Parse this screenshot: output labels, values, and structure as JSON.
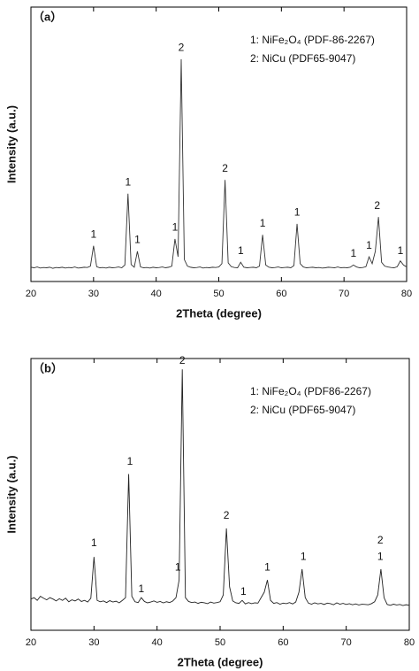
{
  "chart_data": [
    {
      "type": "line",
      "title": "（a）",
      "xlabel": "2Theta (degree)",
      "ylabel": "Intensity (a.u.)",
      "legend_text": [
        "1: NiFe₂O₄ (PDF-86-2267)",
        "2: NiCu (PDF65-9047)"
      ],
      "xlim": [
        20,
        80
      ],
      "xticks": [
        20,
        30,
        40,
        50,
        60,
        70,
        80
      ],
      "ylim": [
        0,
        100
      ],
      "series": [
        {
          "color": "#333333",
          "x": [
            20,
            20.5,
            21,
            21.5,
            22,
            22.5,
            23,
            23.5,
            24,
            24.5,
            25,
            25.5,
            26,
            26.5,
            27,
            27.5,
            28,
            28.5,
            29,
            29.5,
            30,
            30.5,
            31,
            31.5,
            32,
            32.5,
            33,
            33.5,
            34,
            34.5,
            35,
            35.5,
            36,
            36.5,
            37,
            37.5,
            38,
            38.5,
            39,
            39.5,
            40,
            40.5,
            41,
            41.5,
            42,
            42.5,
            43,
            43.5,
            44,
            44.5,
            45,
            45.5,
            46,
            46.5,
            47,
            47.5,
            48,
            48.5,
            49,
            49.5,
            50,
            50.5,
            51,
            51.5,
            52,
            52.5,
            53,
            53.5,
            54,
            54.5,
            55,
            55.5,
            56,
            56.5,
            57,
            57.5,
            58,
            58.5,
            59,
            59.5,
            60,
            60.5,
            61,
            61.5,
            62,
            62.5,
            63,
            63.5,
            64,
            64.5,
            65,
            65.5,
            66,
            66.5,
            67,
            67.5,
            68,
            68.5,
            69,
            69.5,
            70,
            70.5,
            71,
            71.5,
            72,
            72.5,
            73,
            73.5,
            74,
            74.5,
            75,
            75.5,
            76,
            76.5,
            77,
            77.5,
            78,
            78.5,
            79,
            79.5,
            80
          ],
          "values": [
            5.2,
            5.0,
            5.3,
            4.9,
            5.1,
            5.0,
            5.2,
            4.8,
            5.1,
            5.0,
            5.2,
            4.9,
            5.1,
            5.0,
            5.3,
            4.9,
            5.0,
            5.2,
            5.1,
            5.6,
            13,
            5.4,
            5.0,
            5.1,
            4.9,
            5.2,
            5.0,
            5.1,
            5.3,
            5.0,
            6.0,
            32,
            6.2,
            5.2,
            11,
            5.3,
            5.0,
            5.1,
            4.9,
            5.2,
            5.0,
            5.1,
            5.3,
            5.0,
            5.2,
            5.6,
            15.5,
            9,
            81,
            8,
            5.6,
            5.2,
            5.0,
            5.1,
            5.3,
            4.9,
            5.1,
            5.0,
            5.2,
            5.1,
            5.3,
            6.5,
            37,
            6.8,
            5.4,
            5.1,
            5.0,
            7,
            5.2,
            5.0,
            5.1,
            5.2,
            5.0,
            5.6,
            17,
            6,
            5.2,
            5.0,
            5.1,
            5.3,
            5.0,
            5.1,
            5.2,
            5.0,
            5.8,
            21,
            6.5,
            5.3,
            5.0,
            5.1,
            5.2,
            5.0,
            5.1,
            4.9,
            5.0,
            5.2,
            5.1,
            5.0,
            5.3,
            5.0,
            5.1,
            5.0,
            5.2,
            6,
            5.3,
            5.0,
            5.1,
            5.4,
            9,
            6.5,
            11,
            23.5,
            7,
            5.6,
            5.3,
            5.1,
            5.0,
            5.4,
            7.5,
            6.0,
            5.3
          ]
        }
      ],
      "annotations": [
        {
          "text": "1",
          "x": 30,
          "y": 17
        },
        {
          "text": "1",
          "x": 35.5,
          "y": 36
        },
        {
          "text": "1",
          "x": 37,
          "y": 15
        },
        {
          "text": "1",
          "x": 43,
          "y": 19.5
        },
        {
          "text": "2",
          "x": 44,
          "y": 85
        },
        {
          "text": "2",
          "x": 51,
          "y": 41
        },
        {
          "text": "1",
          "x": 53.5,
          "y": 11
        },
        {
          "text": "1",
          "x": 57,
          "y": 21
        },
        {
          "text": "1",
          "x": 62.5,
          "y": 25
        },
        {
          "text": "1",
          "x": 71.5,
          "y": 10
        },
        {
          "text": "1",
          "x": 74,
          "y": 13
        },
        {
          "text": "2",
          "x": 75.3,
          "y": 27.5
        },
        {
          "text": "1",
          "x": 79,
          "y": 11
        }
      ]
    },
    {
      "type": "line",
      "title": "（b）",
      "xlabel": "2Theta (degree)",
      "ylabel": "Intensity (a.u.)",
      "legend_text": [
        "1: NiFe₂O₄ (PDF86-2267)",
        "2: NiCu (PDF65-9047)"
      ],
      "xlim": [
        20,
        80
      ],
      "xticks": [
        20,
        30,
        40,
        50,
        60,
        70,
        80
      ],
      "ylim": [
        0,
        100
      ],
      "series": [
        {
          "color": "#222222",
          "x": [
            20,
            20.5,
            21,
            21.5,
            22,
            22.5,
            23,
            23.5,
            24,
            24.5,
            25,
            25.5,
            26,
            26.5,
            27,
            27.5,
            28,
            28.5,
            29,
            29.5,
            30,
            30.5,
            31,
            31.5,
            32,
            32.5,
            33,
            33.5,
            34,
            34.5,
            35,
            35.5,
            36,
            36.5,
            37,
            37.5,
            38,
            38.5,
            39,
            39.5,
            40,
            40.5,
            41,
            41.5,
            42,
            42.5,
            43,
            43.5,
            44,
            44.5,
            45,
            45.5,
            46,
            46.5,
            47,
            47.5,
            48,
            48.5,
            49,
            49.5,
            50,
            50.5,
            51,
            51.5,
            52,
            52.5,
            53,
            53.5,
            54,
            54.5,
            55,
            55.5,
            56,
            56.5,
            57,
            57.5,
            58,
            58.5,
            59,
            59.5,
            60,
            60.5,
            61,
            61.5,
            62,
            62.5,
            63,
            63.5,
            64,
            64.5,
            65,
            65.5,
            66,
            66.5,
            67,
            67.5,
            68,
            68.5,
            69,
            69.5,
            70,
            70.5,
            71,
            71.5,
            72,
            72.5,
            73,
            73.5,
            74,
            74.5,
            75,
            75.5,
            76,
            76.5,
            77,
            77.5,
            78,
            78.5,
            79,
            79.5,
            80
          ],
          "values": [
            11.5,
            12,
            11,
            12.5,
            11.8,
            11.2,
            12,
            11.5,
            10.8,
            11.6,
            11,
            11.8,
            10.5,
            11.2,
            10.8,
            11.5,
            10.6,
            11,
            10.4,
            11.8,
            27,
            11,
            10.5,
            10.8,
            10.2,
            10.9,
            10.4,
            10.7,
            10.1,
            11,
            12,
            57.5,
            12.5,
            10.5,
            10.2,
            12,
            10.6,
            10.1,
            10.4,
            10.8,
            10.3,
            10.6,
            10.1,
            10.5,
            10.2,
            10.8,
            12,
            18.5,
            96,
            12,
            10.6,
            10.2,
            10.4,
            9.9,
            10.3,
            10.1,
            9.8,
            10.4,
            10,
            10.2,
            10.5,
            13,
            37.5,
            16,
            10.8,
            10.1,
            9.9,
            11,
            9.7,
            10.2,
            9.8,
            10.1,
            10,
            12,
            14,
            18.5,
            11,
            9.9,
            10.2,
            9.6,
            10,
            9.8,
            10.2,
            9.7,
            10.4,
            14,
            22.5,
            12,
            10,
            9.6,
            10.1,
            9.7,
            9.9,
            9.5,
            10,
            9.8,
            9.4,
            10.1,
            9.6,
            9.9,
            9.5,
            9.8,
            9.4,
            9.7,
            9.3,
            9.6,
            9.5,
            9.4,
            9.8,
            10.5,
            13,
            22.5,
            12,
            9.5,
            9.2,
            9.6,
            9.3,
            9.5,
            9.1,
            9.4,
            9.2
          ]
        }
      ],
      "annotations": [
        {
          "text": "1",
          "x": 30,
          "y": 32
        },
        {
          "text": "1",
          "x": 35.7,
          "y": 62
        },
        {
          "text": "1",
          "x": 37.5,
          "y": 15
        },
        {
          "text": "1",
          "x": 43.3,
          "y": 23
        },
        {
          "text": "2",
          "x": 44,
          "y": 99
        },
        {
          "text": "2",
          "x": 51,
          "y": 42
        },
        {
          "text": "1",
          "x": 53.7,
          "y": 14
        },
        {
          "text": "1",
          "x": 57.5,
          "y": 23
        },
        {
          "text": "1",
          "x": 63.2,
          "y": 27
        },
        {
          "text": "1",
          "x": 75.4,
          "y": 27
        },
        {
          "text": "2",
          "x": 75.4,
          "y": 33
        }
      ]
    }
  ]
}
